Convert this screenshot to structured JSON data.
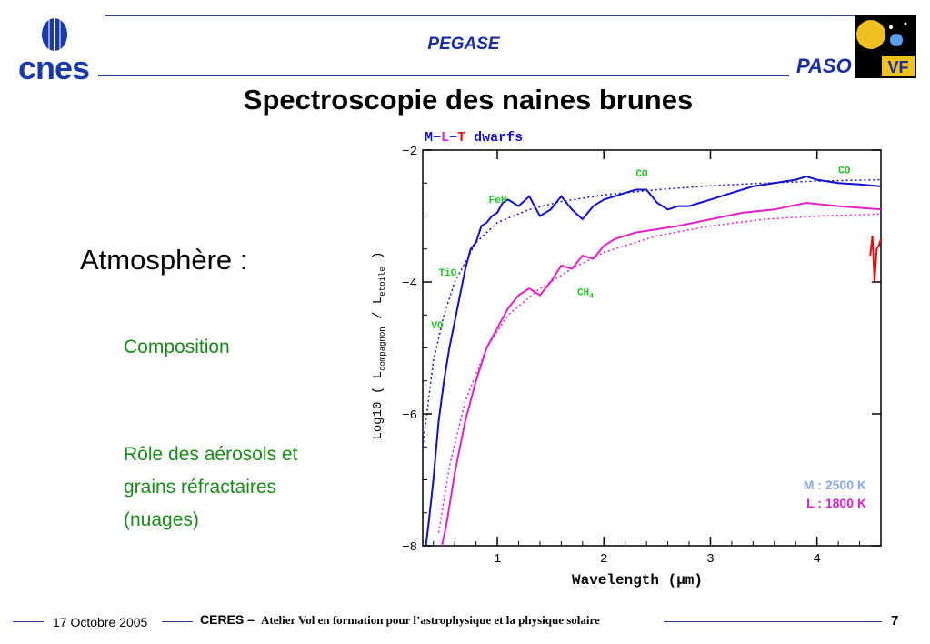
{
  "header": {
    "org_logo_text": "cnes",
    "project_title": "PEGASE",
    "partner_logo_text": "PASO",
    "partner_badge_text": "VF"
  },
  "slide": {
    "title": "Spectroscopie des naines brunes",
    "heading": "Atmosphère :",
    "bullets": [
      "Composition",
      "Rôle des aérosols et",
      "grains réfractaires",
      "(nuages)"
    ]
  },
  "footer": {
    "date": "17 Octobre 2005",
    "event": "CERES –",
    "description": "Atelier Vol en formation pour l’astrophysique et la physique solaire",
    "page": "7"
  },
  "colors": {
    "blue": "#1010c8",
    "magenta": "#e020c8",
    "green_label": "#20c020",
    "red": "#e01010"
  },
  "chart_data": {
    "type": "line",
    "title_parts": [
      {
        "text": "M",
        "color": "#1010c8"
      },
      {
        "text": "−",
        "color": "#1010c8"
      },
      {
        "text": "L",
        "color": "#e020c8"
      },
      {
        "text": "−",
        "color": "#1010c8"
      },
      {
        "text": "T",
        "color": "#e01010"
      },
      {
        "text": "dwarfs",
        "color": "#1010c8"
      }
    ],
    "xlabel": "Wavelength (μm)",
    "ylabel_main": "Log10 ( L",
    "ylabel_sub1": "compagnon",
    "ylabel_mid": " / L",
    "ylabel_sub2": "etoile",
    "ylabel_end": " )",
    "xlim": [
      0.3,
      4.6
    ],
    "ylim": [
      -8,
      -2
    ],
    "x_ticks": [
      1,
      2,
      3,
      4
    ],
    "y_ticks": [
      -2,
      -4,
      -6,
      -8
    ],
    "annotations": [
      {
        "text": "CO",
        "x": 2.3,
        "y": -2.4
      },
      {
        "text": "CO",
        "x": 4.2,
        "y": -2.35
      },
      {
        "text": "FeH",
        "x": 0.92,
        "y": -2.8
      },
      {
        "text": "TiO",
        "x": 0.45,
        "y": -3.9
      },
      {
        "text": "CH",
        "sub": "4",
        "x": 1.75,
        "y": -4.2
      },
      {
        "text": "VO",
        "x": 0.38,
        "y": -4.7
      }
    ],
    "legend": [
      {
        "text": "M : 2500 K",
        "color": "#8aa8e8"
      },
      {
        "text": "L : 1800 K",
        "color": "#e020c8"
      }
    ],
    "legend_position": "bottom-right",
    "series": [
      {
        "name": "M",
        "color": "#1010c8",
        "x": [
          0.33,
          0.36,
          0.4,
          0.45,
          0.5,
          0.55,
          0.6,
          0.65,
          0.7,
          0.75,
          0.8,
          0.85,
          0.9,
          0.95,
          1.0,
          1.05,
          1.1,
          1.2,
          1.3,
          1.4,
          1.5,
          1.6,
          1.7,
          1.8,
          1.9,
          2.0,
          2.1,
          2.2,
          2.3,
          2.4,
          2.5,
          2.6,
          2.7,
          2.8,
          2.9,
          3.0,
          3.2,
          3.4,
          3.6,
          3.8,
          3.9,
          4.0,
          4.2,
          4.4,
          4.6
        ],
        "y": [
          -8.0,
          -7.6,
          -7.0,
          -6.1,
          -5.5,
          -5.0,
          -4.6,
          -4.2,
          -3.8,
          -3.5,
          -3.4,
          -3.15,
          -3.1,
          -3.0,
          -2.95,
          -2.8,
          -2.75,
          -2.85,
          -2.7,
          -3.0,
          -2.9,
          -2.7,
          -2.9,
          -3.05,
          -2.85,
          -2.75,
          -2.7,
          -2.65,
          -2.6,
          -2.6,
          -2.8,
          -2.9,
          -2.85,
          -2.85,
          -2.8,
          -2.75,
          -2.65,
          -2.55,
          -2.5,
          -2.45,
          -2.4,
          -2.45,
          -2.5,
          -2.52,
          -2.55
        ]
      },
      {
        "name": "M fit",
        "color": "#1010c8",
        "dotted": true,
        "x": [
          0.3,
          0.4,
          0.5,
          0.6,
          0.8,
          1.0,
          1.3,
          1.6,
          2.0,
          2.5,
          3.0,
          3.5,
          4.0,
          4.6
        ],
        "y": [
          -6.5,
          -5.2,
          -4.5,
          -4.0,
          -3.4,
          -3.1,
          -2.9,
          -2.78,
          -2.68,
          -2.6,
          -2.54,
          -2.5,
          -2.47,
          -2.45
        ]
      },
      {
        "name": "L",
        "color": "#e020c8",
        "x": [
          0.48,
          0.52,
          0.6,
          0.7,
          0.8,
          0.9,
          1.0,
          1.1,
          1.2,
          1.3,
          1.4,
          1.5,
          1.6,
          1.7,
          1.8,
          1.9,
          2.0,
          2.1,
          2.2,
          2.3,
          2.5,
          2.7,
          3.0,
          3.3,
          3.6,
          3.9,
          4.2,
          4.6
        ],
        "y": [
          -8.0,
          -7.7,
          -6.9,
          -6.1,
          -5.5,
          -5.0,
          -4.7,
          -4.4,
          -4.2,
          -4.1,
          -4.2,
          -4.0,
          -3.75,
          -3.8,
          -3.6,
          -3.65,
          -3.45,
          -3.35,
          -3.3,
          -3.25,
          -3.2,
          -3.15,
          -3.05,
          -2.95,
          -2.9,
          -2.8,
          -2.85,
          -2.9
        ]
      },
      {
        "name": "L fit",
        "color": "#e020c8",
        "dotted": true,
        "x": [
          0.45,
          0.55,
          0.7,
          0.9,
          1.1,
          1.4,
          1.7,
          2.0,
          2.5,
          3.0,
          3.5,
          4.0,
          4.6
        ],
        "y": [
          -7.8,
          -6.8,
          -5.8,
          -5.0,
          -4.5,
          -4.1,
          -3.8,
          -3.55,
          -3.3,
          -3.15,
          -3.05,
          -3.0,
          -2.97
        ]
      },
      {
        "name": "T",
        "color": "#e01010",
        "x": [
          4.5,
          4.52,
          4.54,
          4.56,
          4.58,
          4.6
        ],
        "y": [
          -3.6,
          -3.3,
          -4.0,
          -3.5,
          -3.45,
          -3.35
        ]
      }
    ]
  }
}
